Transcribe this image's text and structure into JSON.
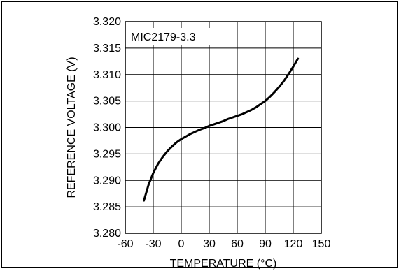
{
  "chart_data": {
    "type": "line",
    "annotation": "MIC2179-3.3",
    "xlabel": "TEMPERATURE (°C)",
    "ylabel": "REFERENCE VOLTAGE (V)",
    "xlim": [
      -60,
      150
    ],
    "ylim": [
      3.28,
      3.32
    ],
    "x_ticks": [
      -60,
      -30,
      0,
      30,
      60,
      90,
      120,
      150
    ],
    "x_tick_labels": [
      "-60",
      "-30",
      "0",
      "30",
      "60",
      "90",
      "120",
      "150"
    ],
    "y_ticks": [
      3.28,
      3.285,
      3.29,
      3.295,
      3.3,
      3.305,
      3.31,
      3.315,
      3.32
    ],
    "y_tick_labels": [
      "3.280",
      "3.285",
      "3.290",
      "3.295",
      "3.300",
      "3.305",
      "3.310",
      "3.315",
      "3.320"
    ],
    "grid": true,
    "series": [
      {
        "x": [
          -40,
          -35,
          -30,
          -25,
          -20,
          -15,
          -10,
          -5,
          0,
          5,
          10,
          15,
          20,
          25,
          30,
          35,
          40,
          45,
          50,
          55,
          60,
          65,
          70,
          75,
          80,
          85,
          90,
          95,
          100,
          105,
          110,
          115,
          120,
          125
        ],
        "y": [
          3.2862,
          3.2892,
          3.2914,
          3.2931,
          3.2944,
          3.2955,
          3.2964,
          3.2972,
          3.2978,
          3.2983,
          3.2988,
          3.2992,
          3.2996,
          3.2999,
          3.3003,
          3.3006,
          3.3009,
          3.3012,
          3.3016,
          3.3019,
          3.3022,
          3.3025,
          3.3029,
          3.3033,
          3.3038,
          3.3044,
          3.305,
          3.3058,
          3.3067,
          3.3077,
          3.3088,
          3.3101,
          3.3115,
          3.313
        ]
      }
    ]
  }
}
